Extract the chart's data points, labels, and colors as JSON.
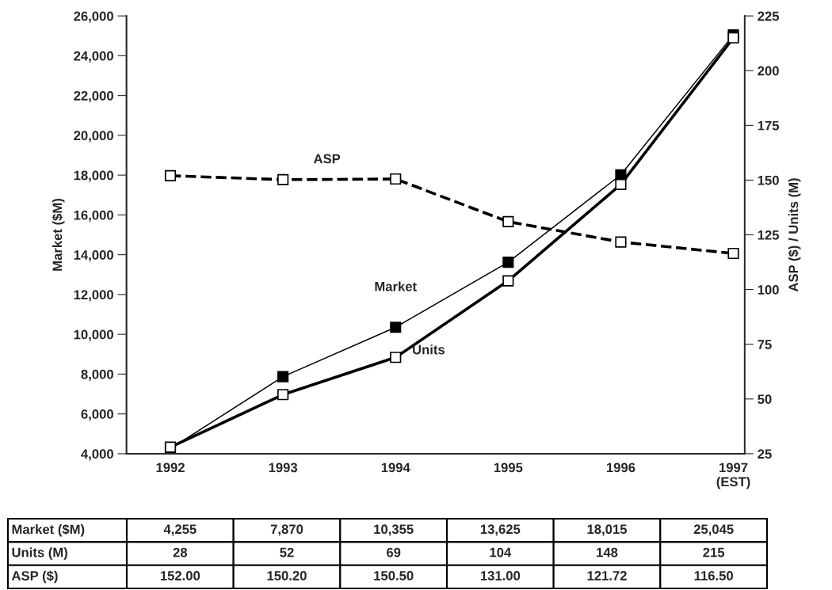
{
  "chart_data": {
    "type": "line",
    "ylabel": "Market ($M)",
    "y2label": "ASP ($) / Units (M)",
    "categories": [
      "1992",
      "1993",
      "1994",
      "1995",
      "1996",
      "1997\n(EST)"
    ],
    "ylim": [
      4000,
      26000
    ],
    "yticks": [
      {
        "value": 4000,
        "label": "4,000"
      },
      {
        "value": 6000,
        "label": "6,000"
      },
      {
        "value": 8000,
        "label": "8,000"
      },
      {
        "value": 10000,
        "label": "10,000"
      },
      {
        "value": 12000,
        "label": "12,000"
      },
      {
        "value": 14000,
        "label": "14,000"
      },
      {
        "value": 16000,
        "label": "16,000"
      },
      {
        "value": 18000,
        "label": "18,000"
      },
      {
        "value": 20000,
        "label": "20,000"
      },
      {
        "value": 22000,
        "label": "22,000"
      },
      {
        "value": 24000,
        "label": "24,000"
      },
      {
        "value": 26000,
        "label": "26,000"
      }
    ],
    "y2lim": [
      25,
      225
    ],
    "y2ticks": [
      25,
      50,
      75,
      100,
      125,
      150,
      175,
      200,
      225
    ],
    "grid": false,
    "legend": false,
    "marker": "square",
    "series": [
      {
        "name": "Market",
        "color": "#000000",
        "line_style": "solid",
        "values": [
          4255,
          7870,
          10355,
          13625,
          18015,
          25045
        ],
        "value_labels": [
          "4,255",
          "7,870",
          "10,355",
          "13,625",
          "18,015",
          "25,045"
        ]
      },
      {
        "name": "Units",
        "color": "#000000",
        "line_style": "solid",
        "axis": "y2",
        "values": [
          28,
          52,
          69,
          104,
          148,
          215
        ],
        "value_labels": [
          "28",
          "52",
          "69",
          "104",
          "148",
          "215"
        ]
      },
      {
        "name": "ASP",
        "color": "#000000",
        "line_style": "dashed",
        "axis": "y2",
        "values": [
          152.0,
          150.2,
          150.5,
          131.0,
          121.72,
          116.5
        ],
        "value_labels": [
          "152.00",
          "150.20",
          "150.50",
          "131.00",
          "121.72",
          "116.50"
        ]
      }
    ],
    "annotations": [
      "Market ($M)",
      "Units (M)",
      "ASP ($)"
    ]
  }
}
